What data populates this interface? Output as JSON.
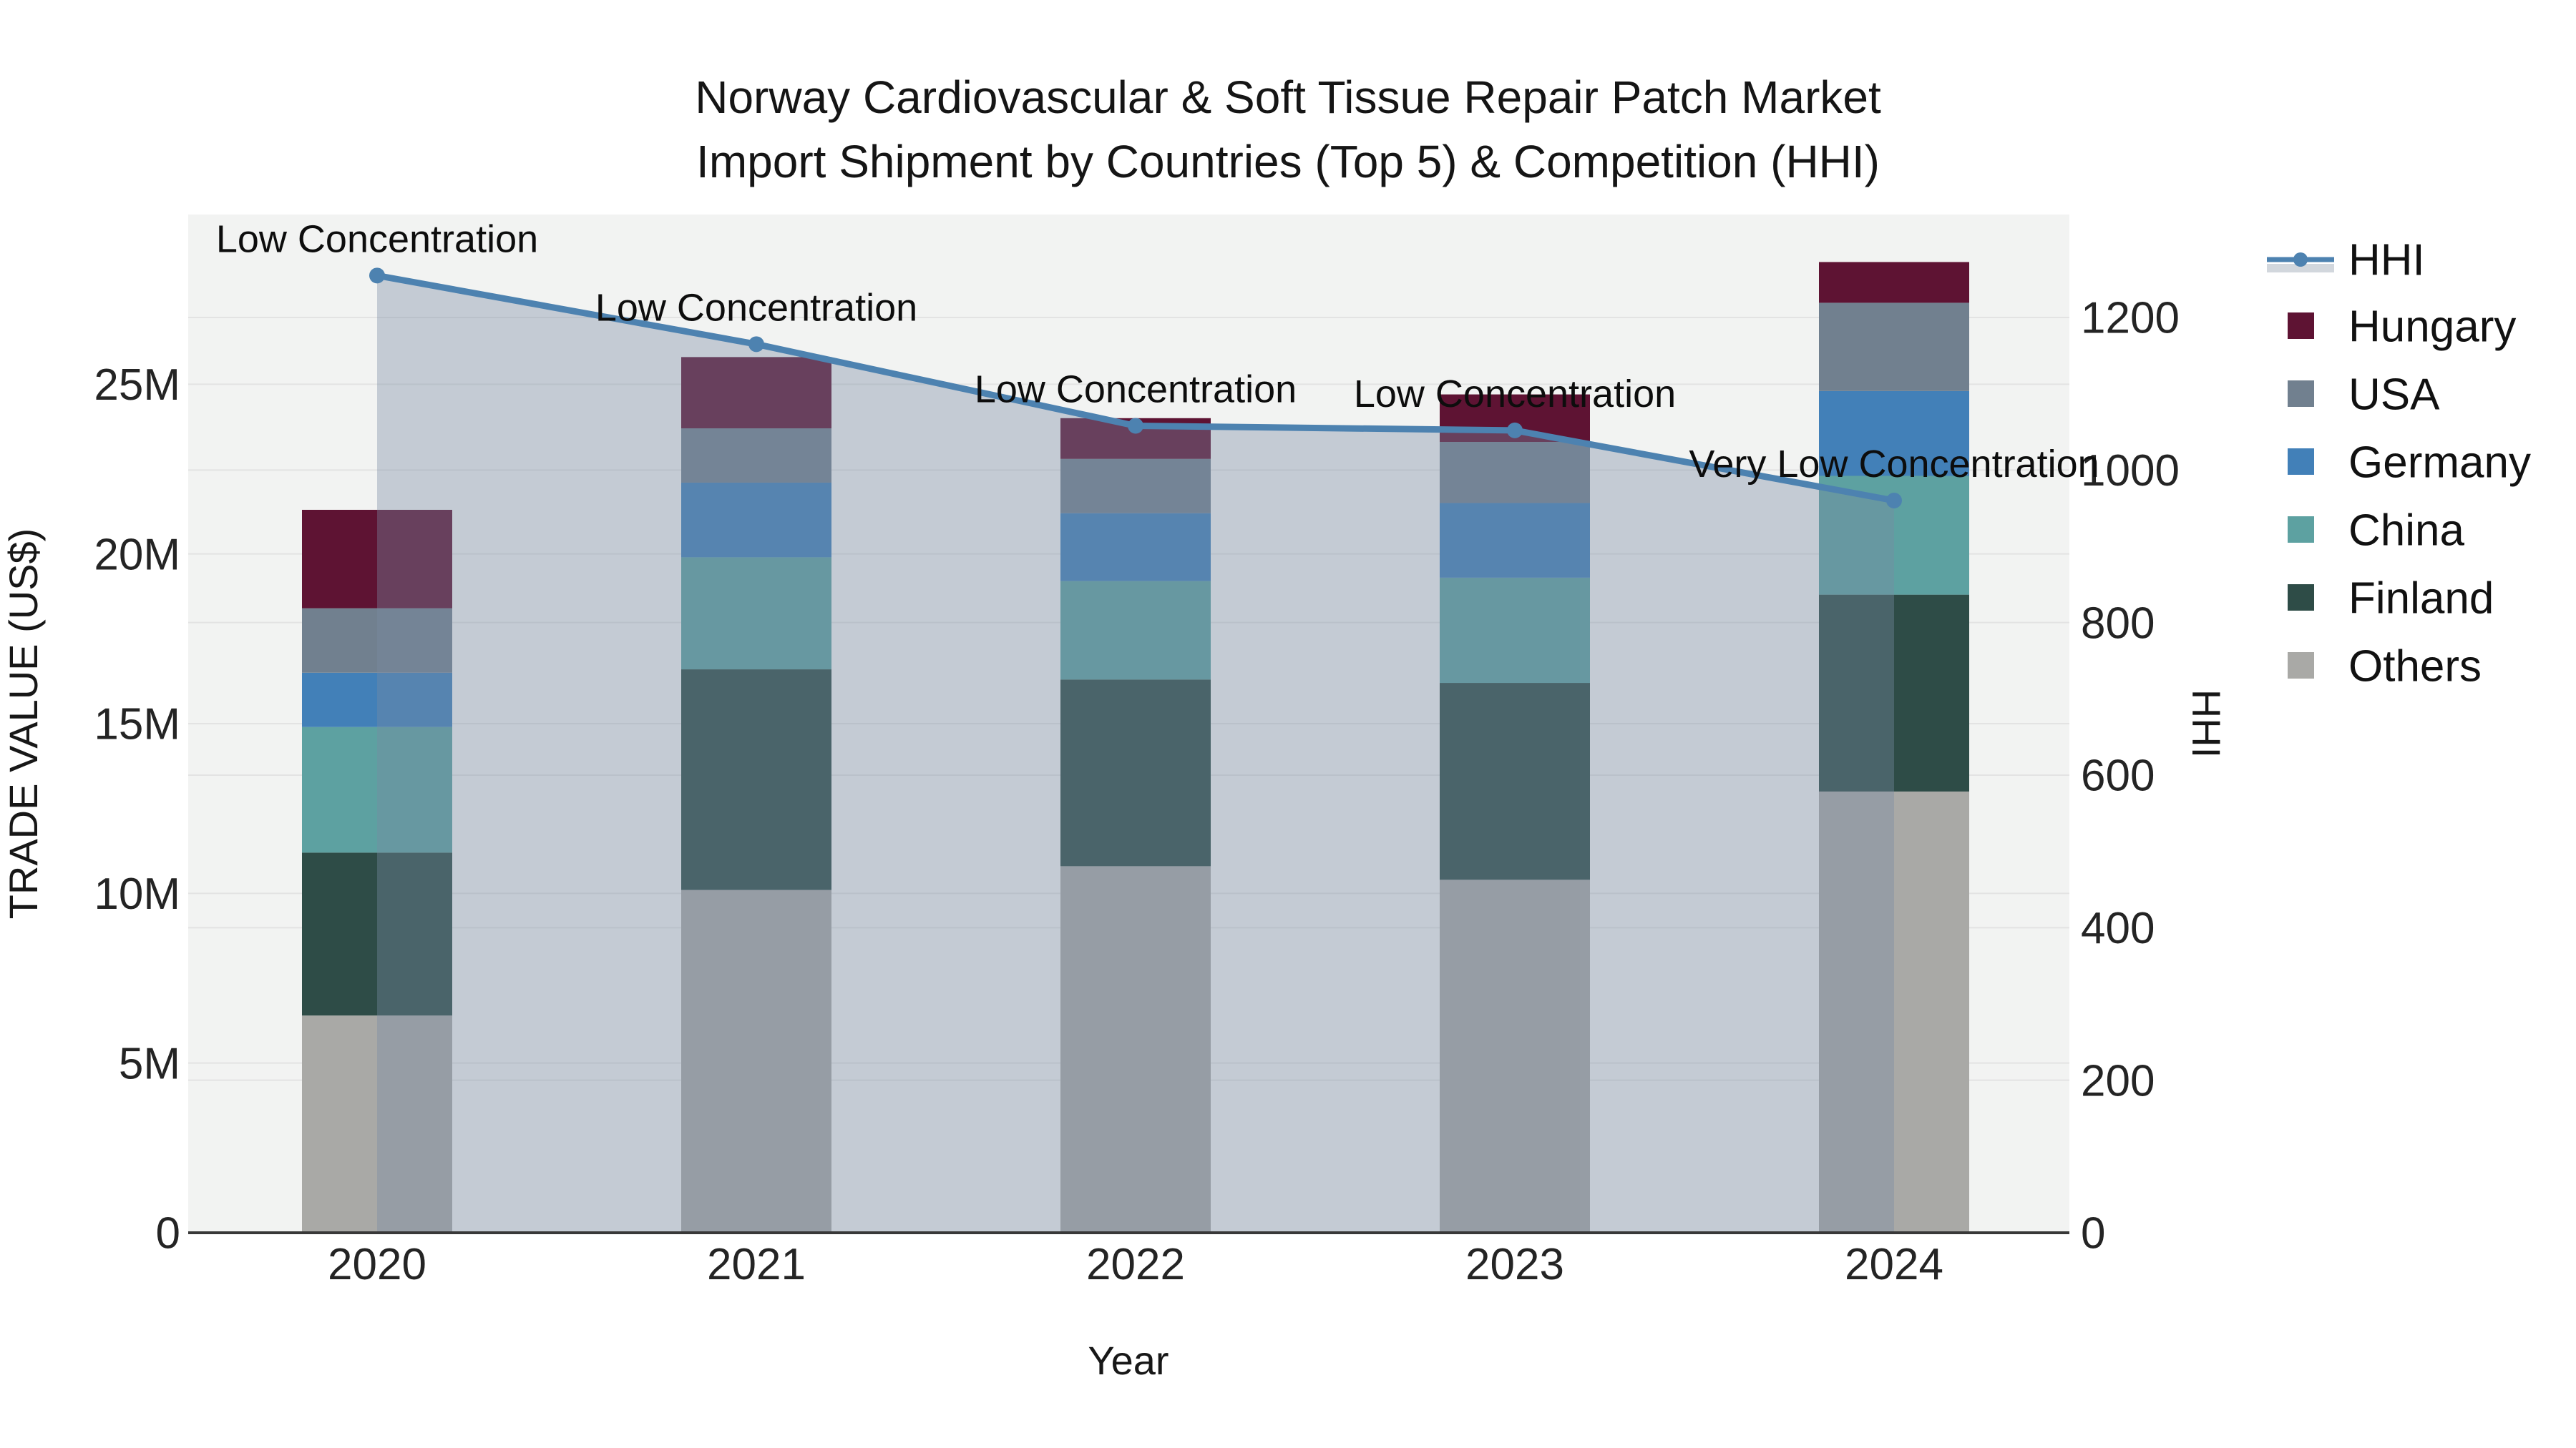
{
  "chart_data": {
    "type": "bar",
    "combo": "stacked-bar-with-line",
    "title": "Norway Cardiovascular & Soft Tissue Repair Patch Market",
    "subtitle": "Import Shipment by Countries (Top 5) & Competition (HHI)",
    "xlabel": "Year",
    "ylabel_left": "TRADE VALUE (US$)",
    "ylabel_right": "HHI",
    "categories": [
      "2020",
      "2021",
      "2022",
      "2023",
      "2024"
    ],
    "bar_series": [
      {
        "name": "Others",
        "color": "#a9a9a6",
        "values_musd": [
          6.4,
          10.1,
          10.8,
          10.4,
          13.0
        ]
      },
      {
        "name": "Finland",
        "color": "#2e4c47",
        "values_musd": [
          4.8,
          6.5,
          5.5,
          5.8,
          5.8
        ]
      },
      {
        "name": "China",
        "color": "#5da1a1",
        "values_musd": [
          3.7,
          3.3,
          2.9,
          3.1,
          3.5
        ]
      },
      {
        "name": "Germany",
        "color": "#4280b8",
        "values_musd": [
          1.6,
          2.2,
          2.0,
          2.2,
          2.5
        ]
      },
      {
        "name": "USA",
        "color": "#71808f",
        "values_musd": [
          1.9,
          1.6,
          1.6,
          1.8,
          2.6
        ]
      },
      {
        "name": "Hungary",
        "color": "#5e1333",
        "values_musd": [
          2.9,
          2.1,
          1.2,
          1.4,
          1.2
        ]
      }
    ],
    "bar_totals_musd": [
      21.3,
      25.8,
      24.0,
      24.7,
      28.6
    ],
    "line_series": {
      "name": "HHI",
      "color": "#4d82b0",
      "fill_color": "rgba(122,140,164,0.38)",
      "values": [
        1255,
        1165,
        1058,
        1052,
        960
      ]
    },
    "annotations": [
      "Low Concentration",
      "Low Concentration",
      "Low Concentration",
      "Low Concentration",
      "Very Low Concentration"
    ],
    "y_left": {
      "tick_labels": [
        "0",
        "5M",
        "10M",
        "15M",
        "20M",
        "25M"
      ],
      "tick_values_musd": [
        0,
        5,
        10,
        15,
        20,
        25
      ],
      "max_musd": 30
    },
    "y_right": {
      "tick_labels": [
        "0",
        "200",
        "400",
        "600",
        "800",
        "1000",
        "1200"
      ],
      "tick_values": [
        0,
        200,
        400,
        600,
        800,
        1000,
        1200
      ],
      "max": 1335
    },
    "legend": {
      "order": [
        "HHI",
        "Hungary",
        "USA",
        "Germany",
        "China",
        "Finland",
        "Others"
      ],
      "position": "right",
      "hhi_band_color": "#d2d7dd"
    },
    "grid": {
      "on": true,
      "color": "#e3e3e3"
    },
    "plot_bg": "#f2f3f2",
    "axis_line_color": "#383838"
  }
}
